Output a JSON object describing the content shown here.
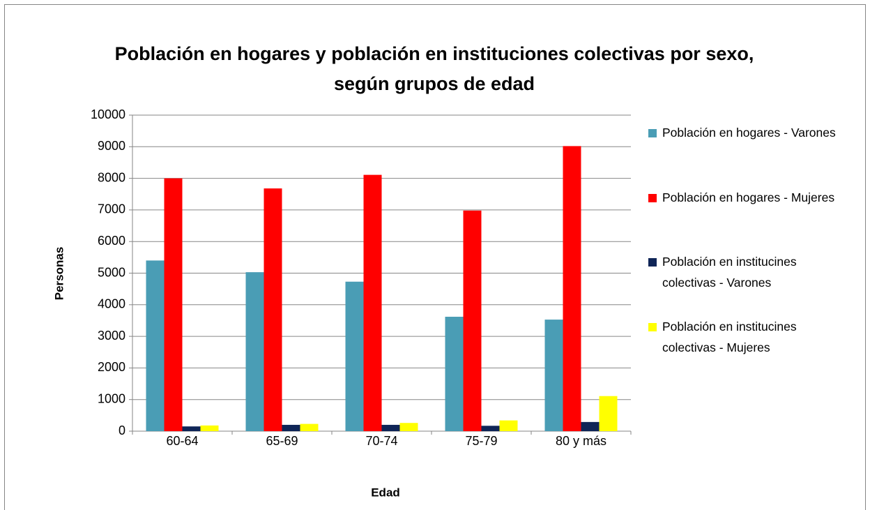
{
  "chart_data": {
    "type": "bar",
    "title": "Población en hogares y población en instituciones colectivas por sexo, según grupos de edad",
    "x_label": "Edad",
    "y_label": "Personas",
    "categories": [
      "60-64",
      "65-69",
      "70-74",
      "75-79",
      "80 y más"
    ],
    "series": [
      {
        "name": "Población en hogares - Varones",
        "color": "#4a9db5",
        "values": [
          5400,
          5030,
          4730,
          3620,
          3530
        ]
      },
      {
        "name": "Población en hogares - Mujeres",
        "color": "#ff0000",
        "values": [
          8000,
          7680,
          8110,
          6980,
          9020
        ]
      },
      {
        "name": "Población en institucines colectivas - Varones",
        "color": "#0f2557",
        "values": [
          150,
          200,
          200,
          170,
          290
        ]
      },
      {
        "name": "Población en institucines colectivas - Mujeres",
        "color": "#ffff00",
        "values": [
          180,
          230,
          260,
          340,
          1110
        ]
      }
    ],
    "ylim": [
      0,
      10000
    ],
    "yticks": [
      0,
      1000,
      2000,
      3000,
      4000,
      5000,
      6000,
      7000,
      8000,
      9000,
      10000
    ],
    "grid": true,
    "legend": "right"
  }
}
